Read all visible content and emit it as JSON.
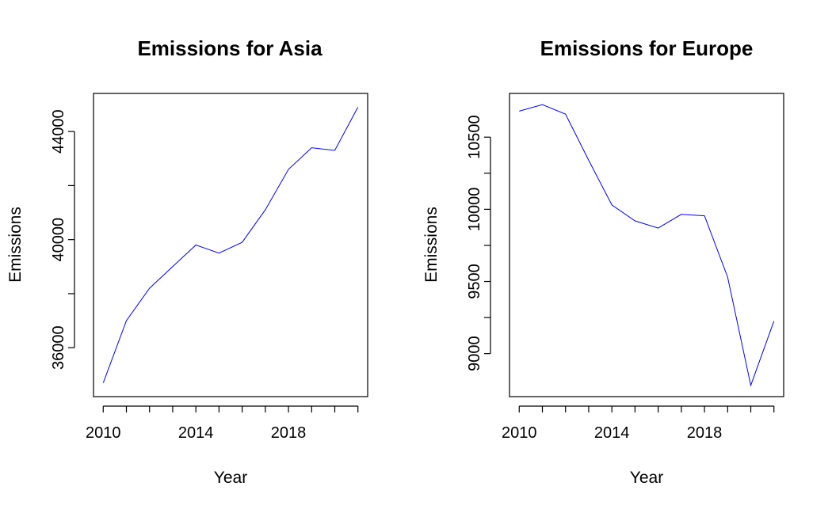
{
  "chart_data": [
    {
      "type": "line",
      "title": "Emissions for Asia",
      "xlabel": "Year",
      "ylabel": "Emissions",
      "x": [
        2010,
        2011,
        2012,
        2013,
        2014,
        2015,
        2016,
        2017,
        2018,
        2019,
        2020,
        2021
      ],
      "series": [
        {
          "values": [
            34700,
            37000,
            38200,
            39000,
            39800,
            39500,
            39900,
            41100,
            42600,
            43400,
            43300,
            44900
          ]
        }
      ],
      "xticks": [
        2010,
        2014,
        2018
      ],
      "yticks": [
        36000,
        40000,
        44000
      ],
      "xlim": [
        2009.58,
        2021.42
      ],
      "ylim": [
        34190,
        45410
      ],
      "color": "#0000ff",
      "grid": false
    },
    {
      "type": "line",
      "title": "Emissions for Europe",
      "xlabel": "Year",
      "ylabel": "Emissions",
      "x": [
        2010,
        2011,
        2012,
        2013,
        2014,
        2015,
        2016,
        2017,
        2018,
        2019,
        2020,
        2021
      ],
      "series": [
        {
          "values": [
            10680,
            10725,
            10660,
            10340,
            10030,
            9920,
            9870,
            9965,
            9955,
            9530,
            8780,
            9225
          ]
        }
      ],
      "xticks": [
        2010,
        2014,
        2018
      ],
      "yticks": [
        9000,
        9500,
        10000,
        10500
      ],
      "xlim": [
        2009.58,
        2021.42
      ],
      "ylim": [
        8702,
        10803
      ],
      "color": "#0000ff",
      "grid": false
    }
  ]
}
